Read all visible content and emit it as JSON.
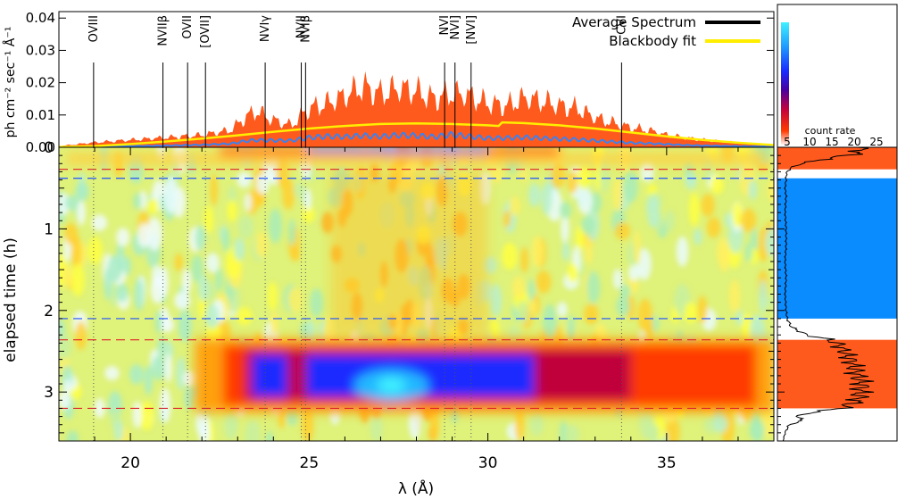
{
  "chart_data": [
    {
      "type": "area",
      "panel": "average-spectrum",
      "ylabel": "ph cm⁻² sec⁻¹ Å⁻¹",
      "xlim": [
        18,
        38
      ],
      "ylim": [
        0,
        0.042
      ],
      "y_ticks": [
        "0.00",
        "0.01",
        "0.02",
        "0.03",
        "0.04"
      ],
      "legend": {
        "placement": "top-right",
        "entries": [
          {
            "label": "Average Spectrum",
            "color": "#000000"
          },
          {
            "label": "Blackbody fit",
            "color": "#ffee00"
          }
        ]
      },
      "line_labels": [
        {
          "label": "OVIII",
          "x": 18.97
        },
        {
          "label": "NVIIβ",
          "x": 20.91
        },
        {
          "label": "OVII",
          "x": 21.6
        },
        {
          "label": "[OVII]",
          "x": 22.1
        },
        {
          "label": "NVIγ",
          "x": 23.77
        },
        {
          "label": "NVII",
          "x": 24.78
        },
        {
          "label": "NVIβ",
          "x": 24.9
        },
        {
          "label": "NVI",
          "x": 28.79
        },
        {
          "label": "NVI]",
          "x": 29.08
        },
        {
          "label": "[NVI]",
          "x": 29.53
        },
        {
          "label": "CVI",
          "x": 33.74
        }
      ],
      "series": [
        {
          "kind": "envelope",
          "color": "#ff5a1e",
          "x": [
            18.0,
            19.0,
            20.0,
            21.0,
            22.0,
            22.8,
            23.2,
            23.5,
            24.0,
            24.5,
            25.0,
            25.5,
            26.0,
            26.5,
            27.0,
            27.5,
            28.0,
            28.5,
            29.0,
            29.5,
            30.0,
            30.5,
            31.0,
            31.5,
            32.0,
            32.5,
            33.0,
            33.5,
            34.0,
            34.5,
            35.0,
            35.5,
            36.0,
            36.5,
            37.0,
            37.5,
            38.0
          ],
          "values": [
            0.0005,
            0.002,
            0.003,
            0.004,
            0.005,
            0.007,
            0.012,
            0.015,
            0.011,
            0.009,
            0.016,
            0.018,
            0.021,
            0.025,
            0.022,
            0.024,
            0.023,
            0.02,
            0.022,
            0.021,
            0.018,
            0.017,
            0.02,
            0.019,
            0.017,
            0.016,
            0.012,
            0.01,
            0.008,
            0.007,
            0.005,
            0.004,
            0.003,
            0.0025,
            0.0018,
            0.0012,
            0.0008
          ]
        },
        {
          "kind": "spectrum",
          "name": "Average Spectrum",
          "color": "#000000",
          "x": [
            18.0,
            19.0,
            20.0,
            21.0,
            22.0,
            22.8,
            23.2,
            23.5,
            24.0,
            24.5,
            25.0,
            25.5,
            26.0,
            26.5,
            27.0,
            27.5,
            28.0,
            28.5,
            29.0,
            29.5,
            30.0,
            30.5,
            31.0,
            31.5,
            32.0,
            32.5,
            33.0,
            33.5,
            34.0,
            34.5,
            35.0,
            35.5,
            36.0,
            36.5,
            37.0,
            37.5,
            38.0
          ],
          "values": [
            0.0002,
            0.0004,
            0.0008,
            0.0012,
            0.0018,
            0.0025,
            0.0045,
            0.0055,
            0.005,
            0.005,
            0.0085,
            0.0092,
            0.0085,
            0.0088,
            0.0082,
            0.0086,
            0.0088,
            0.0082,
            0.0095,
            0.008,
            0.007,
            0.0072,
            0.0075,
            0.007,
            0.0065,
            0.006,
            0.0052,
            0.0045,
            0.0035,
            0.003,
            0.0024,
            0.0018,
            0.0014,
            0.0011,
            0.0008,
            0.0006,
            0.0004
          ]
        },
        {
          "kind": "spectrum-low",
          "color": "#3b82f0",
          "x": [
            18.0,
            19.0,
            20.0,
            21.0,
            22.0,
            22.8,
            23.2,
            23.5,
            24.0,
            24.5,
            25.0,
            25.5,
            26.0,
            26.5,
            27.0,
            27.5,
            28.0,
            28.5,
            29.0,
            29.5,
            30.0,
            30.5,
            31.0,
            31.5,
            32.0,
            32.5,
            33.0,
            33.5,
            34.0,
            34.5,
            35.0,
            35.5,
            36.0,
            36.5,
            37.0,
            37.5,
            38.0
          ],
          "values": [
            0.0001,
            0.0002,
            0.0004,
            0.0006,
            0.0009,
            0.0013,
            0.0022,
            0.0026,
            0.0025,
            0.0024,
            0.0035,
            0.004,
            0.0038,
            0.0042,
            0.0039,
            0.0044,
            0.0042,
            0.0038,
            0.0046,
            0.0039,
            0.0033,
            0.0034,
            0.0036,
            0.0033,
            0.003,
            0.0028,
            0.0024,
            0.002,
            0.0016,
            0.0014,
            0.0011,
            0.0008,
            0.0006,
            0.0005,
            0.0004,
            0.0003,
            0.0002
          ]
        },
        {
          "kind": "fit",
          "name": "Blackbody fit",
          "color": "#ffee00",
          "x": [
            18.0,
            19.0,
            20.0,
            21.0,
            22.0,
            23.0,
            24.0,
            25.0,
            26.0,
            27.0,
            28.0,
            29.0,
            30.0,
            30.3,
            30.4,
            31.0,
            32.0,
            33.0,
            34.0,
            35.0,
            36.0,
            37.0,
            38.0
          ],
          "values": [
            0.0001,
            0.0004,
            0.001,
            0.0018,
            0.0027,
            0.0037,
            0.0048,
            0.0058,
            0.0066,
            0.0072,
            0.0074,
            0.0072,
            0.0068,
            0.0066,
            0.0077,
            0.0075,
            0.0068,
            0.0058,
            0.0046,
            0.0034,
            0.0023,
            0.0014,
            0.0007
          ]
        }
      ]
    },
    {
      "type": "heatmap",
      "panel": "dynamic-spectrum",
      "xlabel": "λ (Å)",
      "ylabel": "elapsed time (h)",
      "xlim": [
        18,
        38
      ],
      "ylim": [
        3.6,
        0
      ],
      "x_ticks": [
        "20",
        "25",
        "30",
        "35"
      ],
      "y_ticks": [
        "0",
        "1",
        "2",
        "3"
      ],
      "markers": [
        {
          "kind": "red-dashed",
          "t": 0.27
        },
        {
          "kind": "blue-dashed",
          "t": 0.38
        },
        {
          "kind": "blue-dashed",
          "t": 2.1
        },
        {
          "kind": "red-dashed",
          "t": 2.36
        },
        {
          "kind": "red-dashed",
          "t": 3.2
        }
      ],
      "colorbar": {
        "label": "count rate",
        "ticks": [
          "5",
          "10",
          "15",
          "20",
          "25"
        ],
        "range": [
          3,
          28
        ]
      },
      "features": [
        {
          "name": "bright-burst",
          "t": [
            2.4,
            3.2
          ],
          "x": [
            22,
            38
          ]
        },
        {
          "name": "early-bright",
          "t": [
            0,
            0.2
          ],
          "x": [
            23,
            32
          ]
        }
      ]
    },
    {
      "type": "line",
      "panel": "lightcurve",
      "ylim": [
        3.6,
        0
      ],
      "bands": [
        {
          "color": "#ff5a1e",
          "t": [
            0,
            0.27
          ]
        },
        {
          "color": "#0a8cff",
          "t": [
            0.38,
            2.1
          ]
        },
        {
          "color": "#ff5a1e",
          "t": [
            2.36,
            3.2
          ]
        }
      ],
      "t": [
        0.0,
        0.05,
        0.1,
        0.15,
        0.2,
        0.25,
        0.3,
        0.35,
        0.4,
        0.5,
        0.6,
        0.8,
        1.0,
        1.2,
        1.4,
        1.6,
        1.8,
        2.0,
        2.1,
        2.2,
        2.3,
        2.35,
        2.4,
        2.5,
        2.6,
        2.7,
        2.8,
        2.9,
        3.0,
        3.1,
        3.2,
        3.25,
        3.3,
        3.35,
        3.4,
        3.5,
        3.6
      ],
      "values": [
        0.75,
        0.8,
        0.65,
        0.4,
        0.2,
        0.1,
        0.06,
        0.05,
        0.05,
        0.04,
        0.05,
        0.04,
        0.05,
        0.05,
        0.04,
        0.05,
        0.04,
        0.05,
        0.06,
        0.1,
        0.25,
        0.45,
        0.55,
        0.62,
        0.68,
        0.72,
        0.75,
        0.8,
        0.78,
        0.76,
        0.6,
        0.3,
        0.15,
        0.22,
        0.08,
        0.04,
        0.02
      ]
    }
  ]
}
